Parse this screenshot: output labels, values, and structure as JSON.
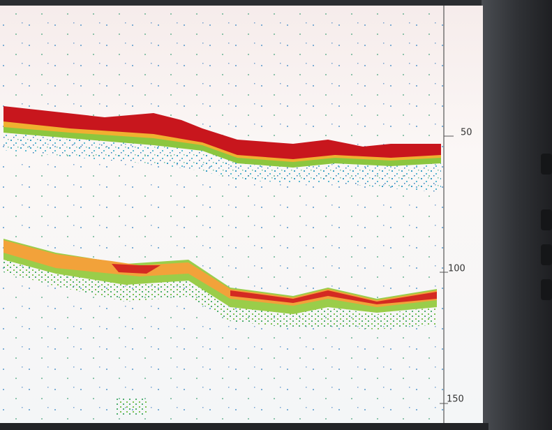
{
  "depth_scale": {
    "labels": [
      "50",
      "100",
      "150"
    ]
  }
}
